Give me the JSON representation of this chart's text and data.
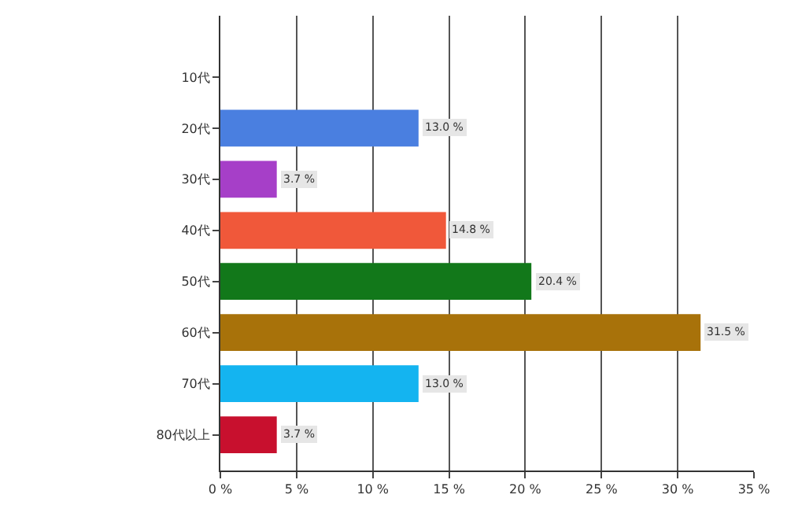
{
  "chart_data": {
    "type": "bar",
    "orientation": "horizontal",
    "categories": [
      "10代",
      "20代",
      "30代",
      "40代",
      "50代",
      "60代",
      "70代",
      "80代以上"
    ],
    "values": [
      0,
      13.0,
      3.7,
      14.8,
      20.4,
      31.5,
      13.0,
      3.7
    ],
    "colors": [
      "#4a7fe0",
      "#4a7fe0",
      "#a63fc8",
      "#f0583a",
      "#12781a",
      "#a8720a",
      "#14b4f0",
      "#c8102e"
    ],
    "value_labels": [
      null,
      "13.0 %",
      "3.7 %",
      "14.8 %",
      "20.4 %",
      "31.5 %",
      "13.0 %",
      "3.7 %"
    ],
    "xlim": [
      0,
      35
    ],
    "xticks": [
      {
        "value": 0,
        "label": "0 %"
      },
      {
        "value": 5,
        "label": "5 %"
      },
      {
        "value": 10,
        "label": "10 %"
      },
      {
        "value": 15,
        "label": "15 %"
      },
      {
        "value": 20,
        "label": "20 %"
      },
      {
        "value": 25,
        "label": "25 %"
      },
      {
        "value": 30,
        "label": "30 %"
      },
      {
        "value": 35,
        "label": "35 %"
      }
    ],
    "grid": "x"
  }
}
